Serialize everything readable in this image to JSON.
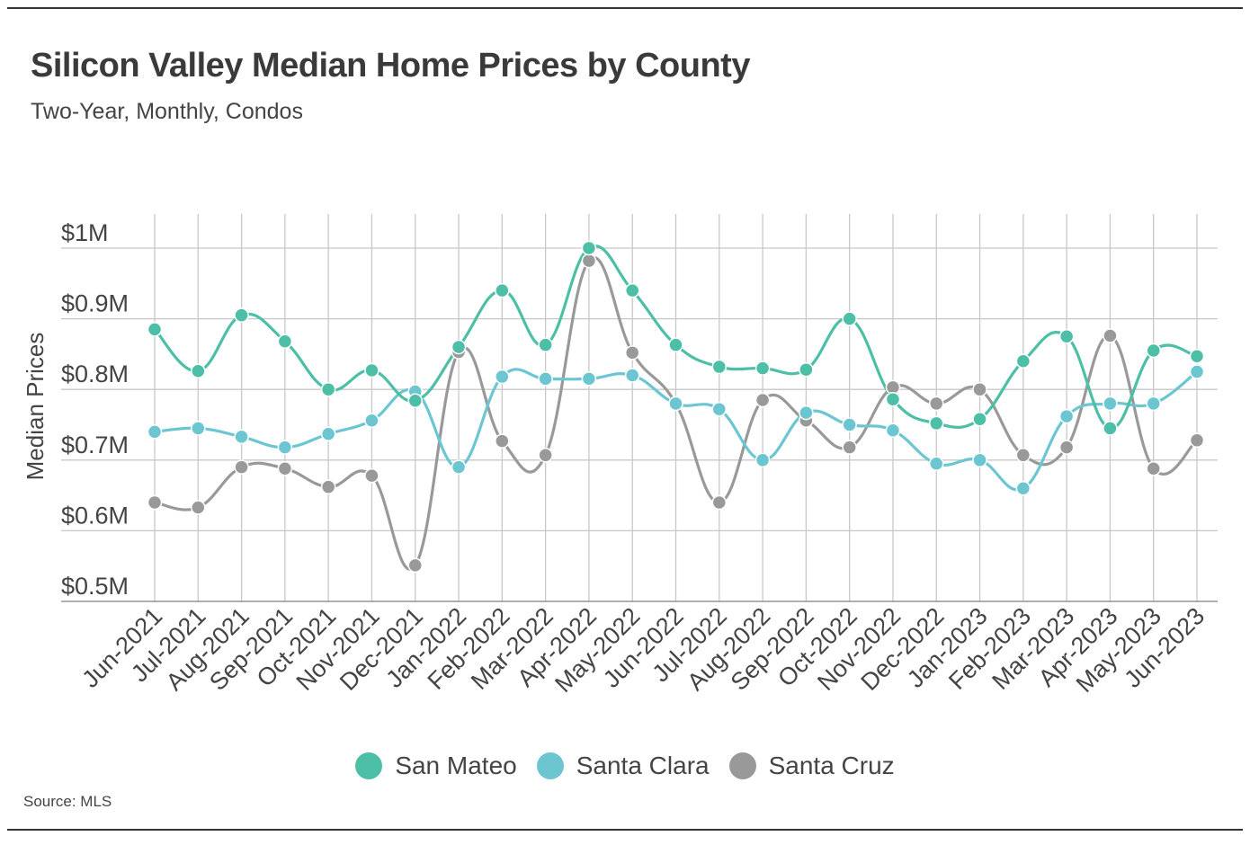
{
  "title": "Silicon Valley Median Home Prices by County",
  "subtitle": "Two-Year, Monthly, Condos",
  "source": "Source:  MLS",
  "colors": {
    "San Mateo": "#4cbfa6",
    "Santa Clara": "#6cc6d2",
    "Santa Cruz": "#999999",
    "grid": "#c8c8c8"
  },
  "chart_data": {
    "type": "line",
    "title": "Silicon Valley Median Home Prices by County",
    "subtitle": "Two-Year, Monthly, Condos",
    "xlabel": "",
    "ylabel": "Median Prices",
    "ylim": [
      0.5,
      1.0
    ],
    "y_ticks": [
      0.5,
      0.6,
      0.7,
      0.8,
      0.9,
      1.0
    ],
    "y_tick_labels": [
      "$0.5M",
      "$0.6M",
      "$0.7M",
      "$0.8M",
      "$0.9M",
      "$1M"
    ],
    "legend_position": "bottom",
    "grid": true,
    "categories": [
      "Jun-2021",
      "Jul-2021",
      "Aug-2021",
      "Sep-2021",
      "Oct-2021",
      "Nov-2021",
      "Dec-2021",
      "Jan-2022",
      "Feb-2022",
      "Mar-2022",
      "Apr-2022",
      "May-2022",
      "Jun-2022",
      "Jul-2022",
      "Aug-2022",
      "Sep-2022",
      "Oct-2022",
      "Nov-2022",
      "Dec-2022",
      "Jan-2023",
      "Feb-2023",
      "Mar-2023",
      "Apr-2023",
      "May-2023",
      "Jun-2023"
    ],
    "series": [
      {
        "name": "San Mateo",
        "color": "#4cbfa6",
        "values": [
          0.885,
          0.826,
          0.905,
          0.868,
          0.8,
          0.827,
          0.784,
          0.86,
          0.94,
          0.863,
          1.0,
          0.94,
          0.863,
          0.832,
          0.83,
          0.828,
          0.9,
          0.786,
          0.752,
          0.758,
          0.84,
          0.875,
          0.745,
          0.855,
          0.847
        ]
      },
      {
        "name": "Santa Clara",
        "color": "#6cc6d2",
        "values": [
          0.74,
          0.745,
          0.733,
          0.718,
          0.737,
          0.756,
          0.797,
          0.69,
          0.818,
          0.815,
          0.815,
          0.82,
          0.78,
          0.772,
          0.7,
          0.767,
          0.75,
          0.742,
          0.695,
          0.7,
          0.66,
          0.762,
          0.78,
          0.78,
          0.825
        ]
      },
      {
        "name": "Santa Cruz",
        "color": "#999999",
        "values": [
          0.64,
          0.633,
          0.69,
          0.688,
          0.662,
          0.678,
          0.551,
          0.853,
          0.727,
          0.707,
          0.982,
          0.852,
          0.78,
          0.64,
          0.785,
          0.756,
          0.718,
          0.803,
          0.78,
          0.8,
          0.707,
          0.718,
          0.876,
          0.688,
          0.728
        ]
      }
    ]
  }
}
